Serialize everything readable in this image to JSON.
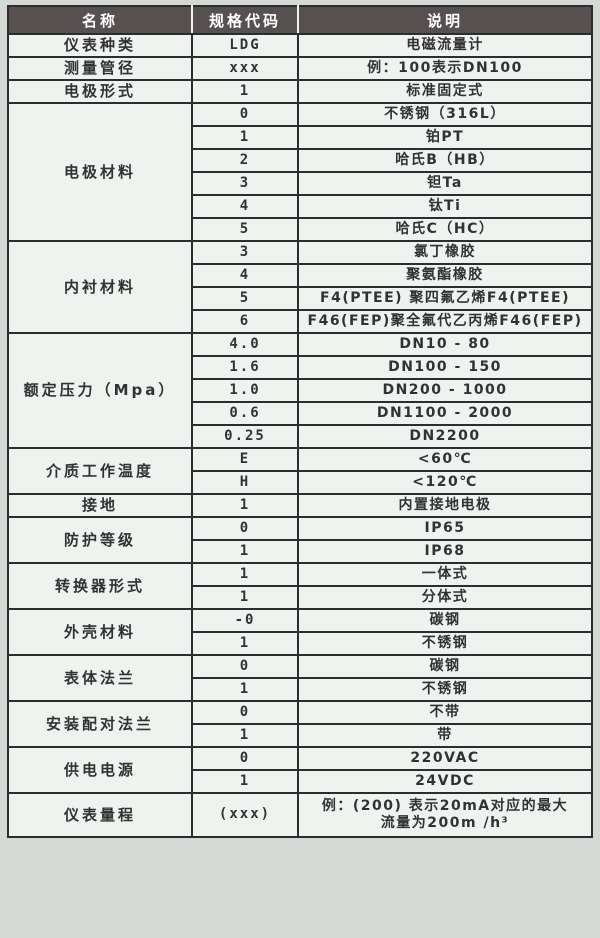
{
  "table": {
    "colors": {
      "page_bg": "#d5d9d5",
      "cell_bg": "#eef3ef",
      "header_bg": "#565150",
      "header_text": "#ffffff",
      "border": "#2d2d2d",
      "body_text": "#323232"
    },
    "columns": [
      "名称",
      "规格代码",
      "说明"
    ],
    "groups": [
      {
        "name": "仪表种类",
        "rows": [
          {
            "code": "LDG",
            "desc": "电磁流量计"
          }
        ]
      },
      {
        "name": "测量管径",
        "rows": [
          {
            "code": "xxx",
            "desc": "例：100表示DN100"
          }
        ]
      },
      {
        "name": "电极形式",
        "rows": [
          {
            "code": "1",
            "desc": "标准固定式"
          }
        ]
      },
      {
        "name": "电极材料",
        "rows": [
          {
            "code": "0",
            "desc": "不锈钢（316L）"
          },
          {
            "code": "1",
            "desc": "铂PT"
          },
          {
            "code": "2",
            "desc": "哈氏B（HB）"
          },
          {
            "code": "3",
            "desc": "钽Ta"
          },
          {
            "code": "4",
            "desc": "钛Ti"
          },
          {
            "code": "5",
            "desc": "哈氏C（HC）"
          }
        ]
      },
      {
        "name": "内衬材料",
        "rows": [
          {
            "code": "3",
            "desc": "氯丁橡胶"
          },
          {
            "code": "4",
            "desc": "聚氨酯橡胶"
          },
          {
            "code": "5",
            "desc": "F4(PTEE) 聚四氟乙烯F4(PTEE)"
          },
          {
            "code": "6",
            "desc": "F46(FEP)聚全氟代乙丙烯F46(FEP)"
          }
        ]
      },
      {
        "name": "额定压力（Mpa）",
        "rows": [
          {
            "code": "4.0",
            "desc": "DN10 - 80"
          },
          {
            "code": "1.6",
            "desc": "DN100 - 150"
          },
          {
            "code": "1.0",
            "desc": "DN200 - 1000"
          },
          {
            "code": "0.6",
            "desc": "DN1100 - 2000"
          },
          {
            "code": "0.25",
            "desc": "DN2200"
          }
        ]
      },
      {
        "name": "介质工作温度",
        "rows": [
          {
            "code": "E",
            "desc": "<60℃"
          },
          {
            "code": "H",
            "desc": "<120℃"
          }
        ]
      },
      {
        "name": "接地",
        "rows": [
          {
            "code": "1",
            "desc": "内置接地电极"
          }
        ]
      },
      {
        "name": "防护等级",
        "rows": [
          {
            "code": "0",
            "desc": "IP65"
          },
          {
            "code": "1",
            "desc": "IP68"
          }
        ]
      },
      {
        "name": "转换器形式",
        "rows": [
          {
            "code": "1",
            "desc": "一体式"
          },
          {
            "code": "1",
            "desc": "分体式"
          }
        ]
      },
      {
        "name": "外壳材料",
        "rows": [
          {
            "code": "-0",
            "desc": "碳钢"
          },
          {
            "code": "1",
            "desc": "不锈钢"
          }
        ]
      },
      {
        "name": "表体法兰",
        "rows": [
          {
            "code": "0",
            "desc": "碳钢"
          },
          {
            "code": "1",
            "desc": "不锈钢"
          }
        ]
      },
      {
        "name": "安装配对法兰",
        "rows": [
          {
            "code": "0",
            "desc": "不带"
          },
          {
            "code": "1",
            "desc": "带"
          }
        ]
      },
      {
        "name": "供电电源",
        "rows": [
          {
            "code": "0",
            "desc": "220VAC"
          },
          {
            "code": "1",
            "desc": "24VDC"
          }
        ]
      },
      {
        "name": "仪表量程",
        "rows": [
          {
            "code": "(xxx)",
            "desc": "例：(200) 表示20mA对应的最大\n流量为200m /h³",
            "tall": true
          }
        ]
      }
    ]
  }
}
